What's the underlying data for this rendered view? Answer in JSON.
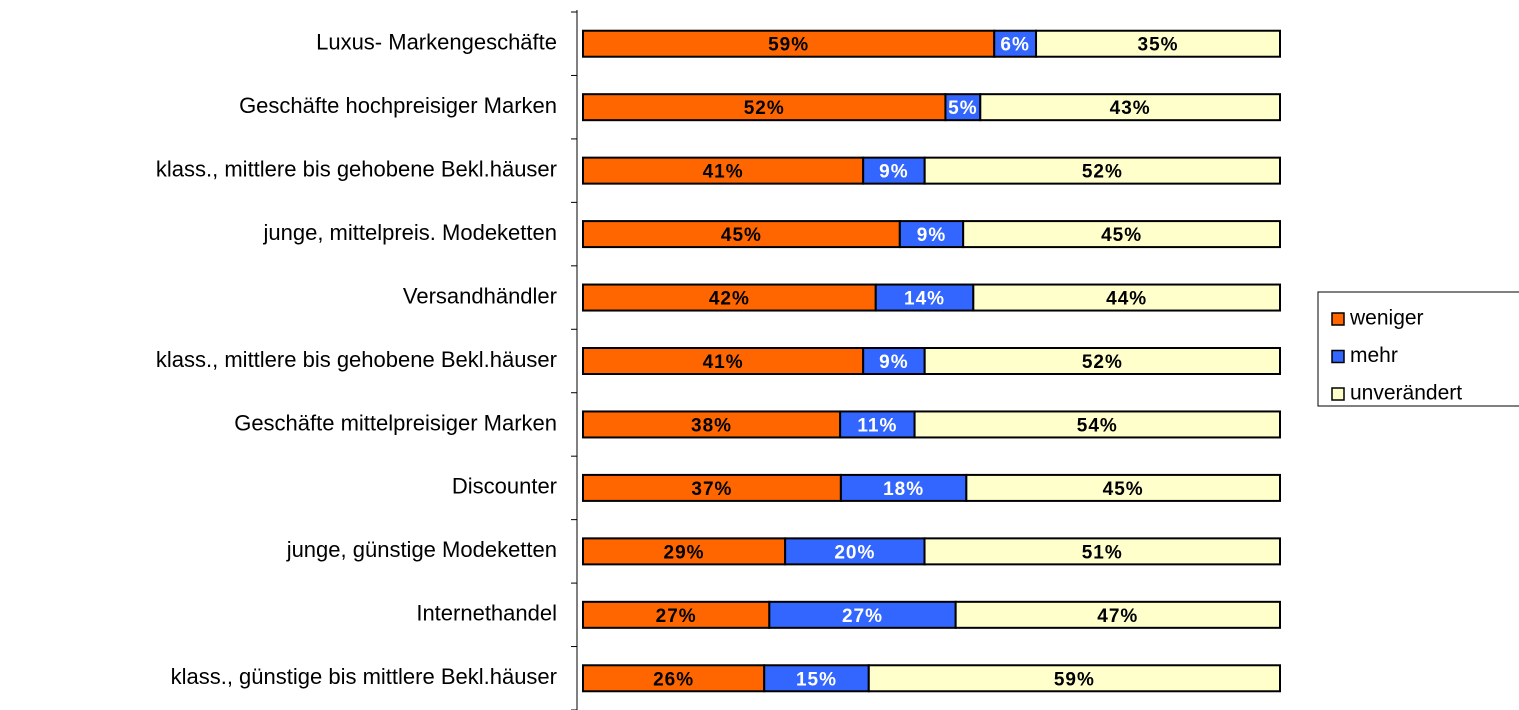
{
  "chart_data": {
    "type": "bar",
    "orientation": "horizontal",
    "stacked": "percent",
    "categories": [
      "Luxus- Markengeschäfte",
      "Geschäfte hochpreisiger Marken",
      "klass., mittlere bis gehobene Bekl.häuser",
      "junge, mittelpreis. Modeketten",
      "Versandhändler",
      "klass., mittlere bis gehobene Bekl.häuser",
      "Geschäfte mittelpreisiger Marken",
      "Discounter",
      "junge, günstige Modeketten",
      "Internethandel",
      "klass., günstige bis mittlere Bekl.häuser"
    ],
    "series": [
      {
        "name": "weniger",
        "color": "#FF6600",
        "values": [
          59,
          52,
          41,
          45,
          42,
          41,
          38,
          37,
          29,
          27,
          26
        ],
        "value_labels": [
          "59%",
          "52%",
          "41%",
          "45%",
          "42%",
          "41%",
          "38%",
          "37%",
          "29%",
          "27%",
          "26%"
        ]
      },
      {
        "name": "mehr",
        "color": "#3366FF",
        "values": [
          6,
          5,
          9,
          9,
          14,
          9,
          11,
          18,
          20,
          27,
          15
        ],
        "value_labels": [
          "6%",
          "5%",
          "9%",
          "9%",
          "14%",
          "9%",
          "11%",
          "18%",
          "20%",
          "27%",
          "15%"
        ]
      },
      {
        "name": "unverändert",
        "color": "#FFFFCC",
        "values": [
          35,
          43,
          52,
          45,
          44,
          52,
          54,
          45,
          51,
          47,
          59
        ],
        "value_labels": [
          "35%",
          "43%",
          "52%",
          "45%",
          "44%",
          "52%",
          "54%",
          "45%",
          "51%",
          "47%",
          "59%"
        ]
      }
    ],
    "legend": "right"
  }
}
